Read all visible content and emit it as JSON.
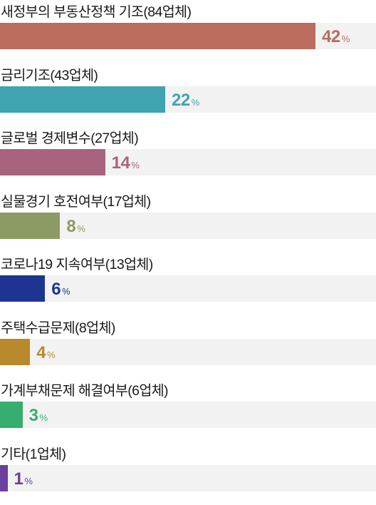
{
  "chart_data": {
    "type": "bar",
    "orientation": "horizontal",
    "unit": "%",
    "xlim": [
      0,
      50
    ],
    "grid": false,
    "legend": "none",
    "items": [
      {
        "label": "새정부의 부동산정책 기조(84업체)",
        "value": 42,
        "color": "#bb6c5d"
      },
      {
        "label": "금리기조(43업체)",
        "value": 22,
        "color": "#3fa3b2"
      },
      {
        "label": "글로벌 경제변수(27업체)",
        "value": 14,
        "color": "#a8637f"
      },
      {
        "label": "실물경기 호전여부(17업체)",
        "value": 8,
        "color": "#8c9b63"
      },
      {
        "label": "코로나19 지속여부(13업체)",
        "value": 6,
        "color": "#1d3590"
      },
      {
        "label": "주택수급문제(8업체)",
        "value": 4,
        "color": "#b98a2b"
      },
      {
        "label": "가계부채문제 해결여부(6업체)",
        "value": 3,
        "color": "#37ad6f"
      },
      {
        "label": "기타(1업체)",
        "value": 1,
        "color": "#6b3f9e"
      }
    ]
  }
}
